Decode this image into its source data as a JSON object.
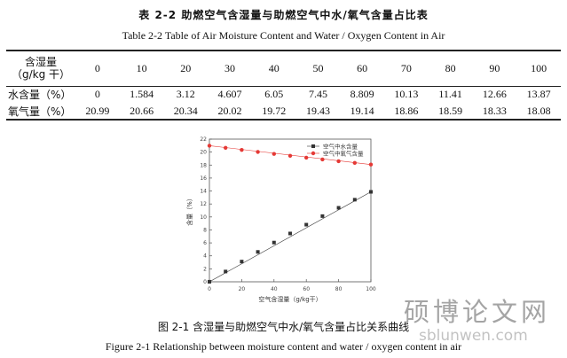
{
  "table": {
    "title_cn": "表 2-2 助燃空气含湿量与助燃空气中水/氧气含量占比表",
    "title_en": "Table 2-2 Table of Air Moisture Content and Water / Oxygen Content in Air",
    "header_label_line1": "含湿量",
    "header_label_line2": "（g/kg 干）",
    "columns": [
      "0",
      "10",
      "20",
      "30",
      "40",
      "50",
      "60",
      "70",
      "80",
      "90",
      "100"
    ],
    "rows": [
      {
        "label": "水含量（%）",
        "values": [
          "0",
          "1.584",
          "3.12",
          "4.607",
          "6.05",
          "7.45",
          "8.809",
          "10.13",
          "11.41",
          "12.66",
          "13.87"
        ]
      },
      {
        "label": "氧气量（%）",
        "values": [
          "20.99",
          "20.66",
          "20.34",
          "20.02",
          "19.72",
          "19.43",
          "19.14",
          "18.86",
          "18.59",
          "18.33",
          "18.08"
        ]
      }
    ]
  },
  "figure": {
    "caption_cn": "图 2-1 含湿量与助燃空气中水/氧气含量占比关系曲线",
    "caption_en": "Figure 2-1 Relationship between moisture content and water / oxygen content in air"
  },
  "chart_data": {
    "type": "scatter",
    "x": [
      0,
      10,
      20,
      30,
      40,
      50,
      60,
      70,
      80,
      90,
      100
    ],
    "series": [
      {
        "name": "空气中水含量",
        "values": [
          0,
          1.584,
          3.12,
          4.607,
          6.05,
          7.45,
          8.809,
          10.13,
          11.41,
          12.66,
          13.87
        ],
        "color": "#333333",
        "marker": "square"
      },
      {
        "name": "空气中氧气含量",
        "values": [
          20.99,
          20.66,
          20.34,
          20.02,
          19.72,
          19.43,
          19.14,
          18.86,
          18.59,
          18.33,
          18.08
        ],
        "color": "#e53935",
        "marker": "circle"
      }
    ],
    "xlabel": "空气含湿量（g/kg干）",
    "ylabel": "含量（%）",
    "xlim": [
      0,
      100
    ],
    "ylim": [
      0,
      22
    ],
    "xticks": [
      0,
      20,
      40,
      60,
      80,
      100
    ],
    "yticks": [
      0,
      2,
      4,
      6,
      8,
      10,
      12,
      14,
      16,
      18,
      20,
      22
    ],
    "legend_position": "top-right",
    "grid": false
  },
  "watermark": {
    "text_cn": "硕博论文网",
    "url": "sblunwen.com"
  }
}
